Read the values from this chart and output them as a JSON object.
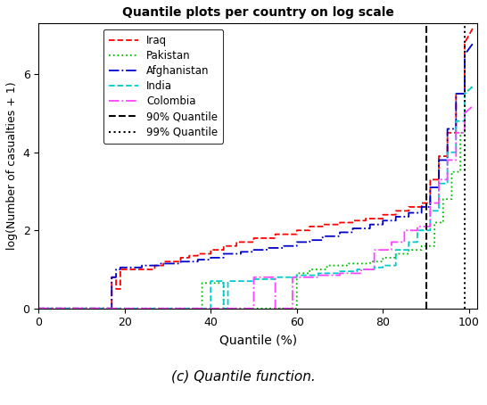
{
  "title": "Quantile plots per country on log scale",
  "xlabel": "Quantile (%)",
  "ylabel": "log(Number of casualties + 1)",
  "xlim": [
    0,
    102
  ],
  "ylim": [
    0,
    7.3
  ],
  "yticks": [
    0,
    2,
    4,
    6
  ],
  "xticks": [
    0,
    20,
    40,
    60,
    80,
    100
  ],
  "q90_x": 90,
  "q99_x": 99,
  "caption": "(c) Quantile function.",
  "figsize": [
    5.46,
    4.54
  ],
  "dpi": 100,
  "background_color": "#ffffff",
  "iraq": {
    "color": "#FF0000",
    "ls": "--",
    "lw": 1.3,
    "x": [
      0,
      17,
      17,
      18,
      18,
      19,
      19,
      27,
      27,
      29,
      29,
      33,
      33,
      35,
      35,
      37,
      37,
      40,
      40,
      43,
      43,
      46,
      46,
      50,
      50,
      55,
      55,
      60,
      60,
      63,
      63,
      66,
      66,
      70,
      70,
      73,
      73,
      76,
      76,
      80,
      80,
      83,
      83,
      86,
      86,
      89,
      89,
      91,
      91,
      93,
      93,
      95,
      95,
      97,
      97,
      99,
      99,
      101
    ],
    "y": [
      0,
      0,
      0.8,
      0.8,
      0.5,
      0.5,
      1.0,
      1.0,
      1.1,
      1.1,
      1.2,
      1.2,
      1.3,
      1.3,
      1.35,
      1.35,
      1.4,
      1.4,
      1.5,
      1.5,
      1.6,
      1.6,
      1.7,
      1.7,
      1.8,
      1.8,
      1.9,
      1.9,
      2.0,
      2.0,
      2.1,
      2.1,
      2.15,
      2.15,
      2.2,
      2.2,
      2.25,
      2.25,
      2.3,
      2.3,
      2.4,
      2.4,
      2.5,
      2.5,
      2.6,
      2.6,
      2.7,
      2.7,
      3.3,
      3.3,
      3.9,
      3.9,
      4.5,
      4.5,
      5.5,
      5.5,
      6.8,
      7.2
    ]
  },
  "pakistan": {
    "color": "#00BB00",
    "ls": ":",
    "lw": 1.3,
    "x": [
      0,
      38,
      38,
      43,
      43,
      44,
      44,
      60,
      60,
      63,
      63,
      67,
      67,
      72,
      72,
      77,
      77,
      80,
      80,
      83,
      83,
      86,
      86,
      89,
      89,
      92,
      92,
      94,
      94,
      96,
      96,
      98,
      98,
      99,
      99,
      101
    ],
    "y": [
      0,
      0,
      0.65,
      0.65,
      0.0,
      0.0,
      0.0,
      0.0,
      0.9,
      0.9,
      1.0,
      1.0,
      1.1,
      1.1,
      1.15,
      1.15,
      1.2,
      1.2,
      1.3,
      1.3,
      1.4,
      1.4,
      1.5,
      1.5,
      1.6,
      1.6,
      2.2,
      2.2,
      2.8,
      2.8,
      3.5,
      3.5,
      4.5,
      4.5,
      5.5,
      5.7
    ]
  },
  "afghanistan": {
    "color": "#0000CC",
    "ls": "-.",
    "lw": 1.3,
    "x": [
      0,
      17,
      17,
      18,
      18,
      19,
      19,
      24,
      24,
      28,
      28,
      33,
      33,
      37,
      37,
      40,
      40,
      43,
      43,
      47,
      47,
      50,
      50,
      53,
      53,
      57,
      57,
      60,
      60,
      63,
      63,
      66,
      66,
      70,
      70,
      73,
      73,
      77,
      77,
      80,
      80,
      83,
      83,
      86,
      86,
      89,
      89,
      91,
      91,
      93,
      93,
      95,
      95,
      97,
      97,
      99,
      99,
      101
    ],
    "y": [
      0,
      0,
      0.8,
      0.8,
      1.0,
      1.0,
      1.05,
      1.05,
      1.1,
      1.1,
      1.15,
      1.15,
      1.2,
      1.2,
      1.25,
      1.25,
      1.3,
      1.3,
      1.4,
      1.4,
      1.45,
      1.45,
      1.5,
      1.5,
      1.55,
      1.55,
      1.6,
      1.6,
      1.7,
      1.7,
      1.75,
      1.75,
      1.85,
      1.85,
      1.95,
      1.95,
      2.05,
      2.05,
      2.15,
      2.15,
      2.25,
      2.25,
      2.35,
      2.35,
      2.45,
      2.45,
      2.6,
      2.6,
      3.1,
      3.1,
      3.8,
      3.8,
      4.6,
      4.6,
      5.5,
      5.5,
      6.5,
      6.8
    ]
  },
  "india": {
    "color": "#00CCCC",
    "ls": "--",
    "lw": 1.3,
    "x": [
      0,
      40,
      40,
      43,
      43,
      44,
      44,
      50,
      50,
      55,
      55,
      60,
      60,
      65,
      65,
      70,
      70,
      74,
      74,
      78,
      78,
      80,
      80,
      83,
      83,
      86,
      86,
      88,
      88,
      91,
      91,
      93,
      93,
      95,
      95,
      97,
      97,
      99,
      99,
      101
    ],
    "y": [
      0,
      0,
      0.7,
      0.7,
      0.0,
      0.0,
      0.7,
      0.7,
      0.75,
      0.75,
      0.8,
      0.8,
      0.85,
      0.85,
      0.9,
      0.9,
      0.95,
      0.95,
      1.0,
      1.0,
      1.05,
      1.05,
      1.1,
      1.1,
      1.5,
      1.5,
      1.7,
      1.7,
      2.0,
      2.0,
      2.5,
      2.5,
      3.2,
      3.2,
      4.0,
      4.0,
      4.8,
      4.8,
      5.5,
      5.7
    ]
  },
  "colombia": {
    "color": "#FF44FF",
    "ls": "-.",
    "lw": 1.3,
    "x": [
      0,
      40,
      40,
      43,
      43,
      50,
      50,
      55,
      55,
      59,
      59,
      65,
      65,
      70,
      70,
      75,
      75,
      78,
      78,
      82,
      82,
      85,
      85,
      88,
      88,
      91,
      91,
      93,
      93,
      95,
      95,
      97,
      97,
      99,
      99,
      101
    ],
    "y": [
      0,
      0,
      0.0,
      0.0,
      0.0,
      0.0,
      0.8,
      0.8,
      0.0,
      0.0,
      0.8,
      0.8,
      0.85,
      0.85,
      0.9,
      0.9,
      1.0,
      1.0,
      1.5,
      1.5,
      1.7,
      1.7,
      2.0,
      2.0,
      2.1,
      2.1,
      2.7,
      2.7,
      3.3,
      3.3,
      3.8,
      3.8,
      4.5,
      4.5,
      5.0,
      5.2
    ]
  }
}
